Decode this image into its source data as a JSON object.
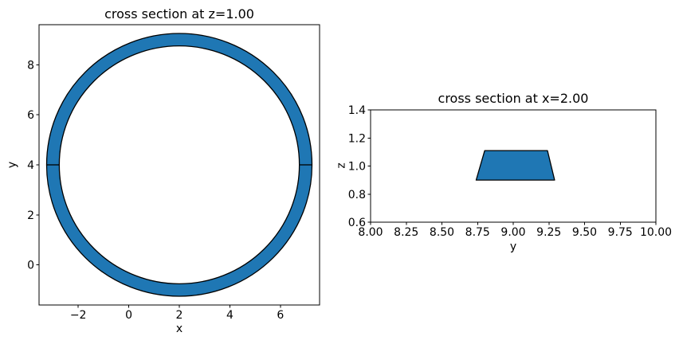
{
  "figure": {
    "background": "#ffffff",
    "accent_fill": "#1f77b4",
    "edge_color": "#000000",
    "text_color": "#000000"
  },
  "chart_data": [
    {
      "type": "area",
      "title": "cross section at z=1.00",
      "xlabel": "x",
      "ylabel": "y",
      "xlim": [
        -3.55,
        7.55
      ],
      "ylim": [
        -1.6,
        9.6
      ],
      "grid": false,
      "legend": null,
      "xticks": {
        "values": [
          -2,
          0,
          2,
          4,
          6
        ],
        "labels": [
          "−2",
          "0",
          "2",
          "4",
          "6"
        ]
      },
      "yticks": {
        "values": [
          0,
          2,
          4,
          6,
          8
        ],
        "labels": [
          "0",
          "2",
          "4",
          "6",
          "8"
        ]
      },
      "shape": {
        "kind": "annulus",
        "description": "filled ring (torus cut at z=1.00) with horizontal seam lines at y=4 on left and right",
        "center": [
          2.0,
          4.0
        ],
        "outer_radius": 5.25,
        "inner_radius": 4.75,
        "seam_y": 4.0,
        "fill": "#1f77b4",
        "stroke": "#000000"
      }
    },
    {
      "type": "area",
      "title": "cross section at x=2.00",
      "xlabel": "y",
      "ylabel": "z",
      "xlim": [
        8.0,
        10.0
      ],
      "ylim": [
        0.6,
        1.4
      ],
      "grid": false,
      "legend": null,
      "xticks": {
        "values": [
          8.0,
          8.25,
          8.5,
          8.75,
          9.0,
          9.25,
          9.5,
          9.75,
          10.0
        ],
        "labels": [
          "8.00",
          "8.25",
          "8.50",
          "8.75",
          "9.00",
          "9.25",
          "9.50",
          "9.75",
          "10.00"
        ]
      },
      "yticks": {
        "values": [
          0.6,
          0.8,
          1.0,
          1.2,
          1.4
        ],
        "labels": [
          "0.6",
          "0.8",
          "1.0",
          "1.2",
          "1.4"
        ]
      },
      "shape": {
        "kind": "polygon",
        "description": "trapezoid (torus tube cut at x=2.00)",
        "vertices": [
          [
            8.74,
            0.9
          ],
          [
            9.29,
            0.9
          ],
          [
            9.24,
            1.11
          ],
          [
            8.8,
            1.11
          ]
        ],
        "fill": "#1f77b4",
        "stroke": "#000000"
      }
    }
  ]
}
